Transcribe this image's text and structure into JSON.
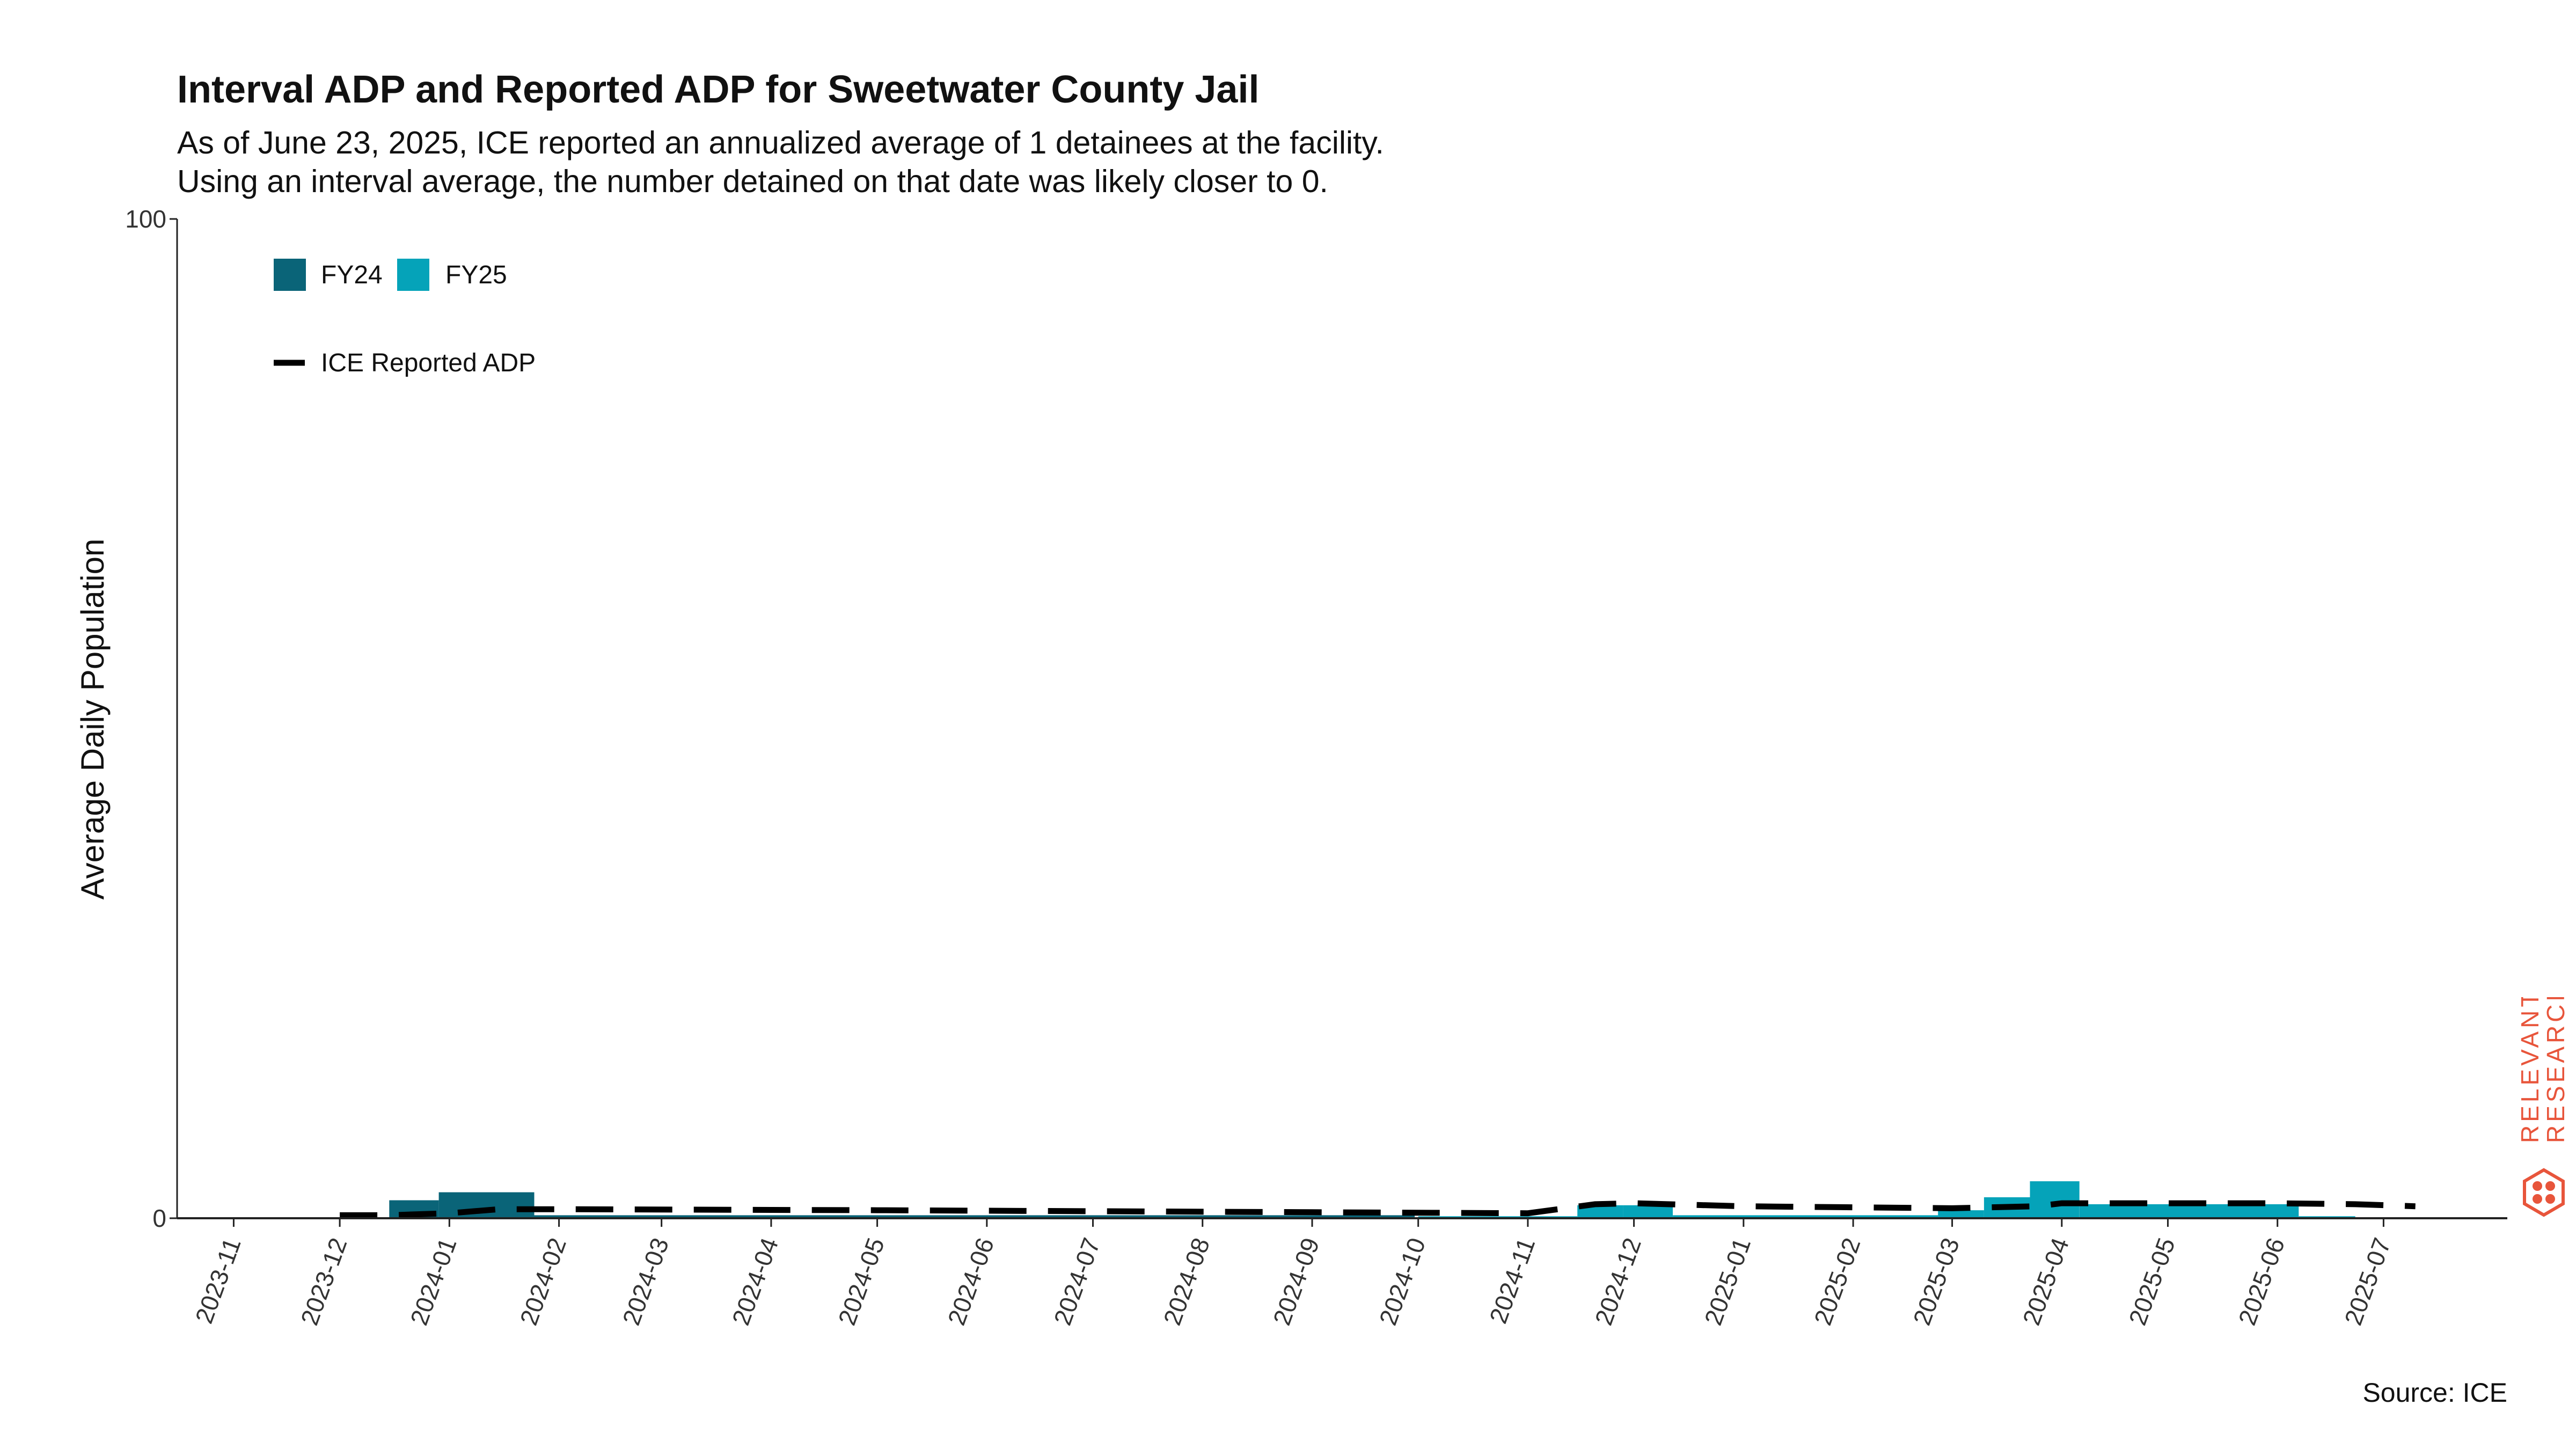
{
  "chart_data": {
    "type": "bar",
    "title": "Interval ADP and Reported ADP for Sweetwater County Jail",
    "subtitle_lines": [
      "As of June 23, 2025, ICE reported an annualized average of 1 detainees at the facility.",
      "Using an interval average, the number detained on that date was likely closer to 0."
    ],
    "ylabel": "Average Daily Population",
    "xlabel": "",
    "ylim": [
      0,
      100
    ],
    "y_ticks": [
      "0",
      "100"
    ],
    "x_ticks": [
      "2023-11",
      "2023-12",
      "2024-01",
      "2024-02",
      "2024-03",
      "2024-04",
      "2024-05",
      "2024-06",
      "2024-07",
      "2024-08",
      "2024-09",
      "2024-10",
      "2024-11",
      "2024-12",
      "2025-01",
      "2025-02",
      "2025-03",
      "2025-04",
      "2025-05",
      "2025-06",
      "2025-07"
    ],
    "x_range": [
      "2023-10-16",
      "2025-08-05"
    ],
    "grid": false,
    "legend": {
      "placement": "top-left",
      "bar_entries": [
        {
          "name": "FY24",
          "color": "#0a6478"
        },
        {
          "name": "FY25",
          "color": "#05a3b9"
        }
      ],
      "line_entry": "ICE Reported ADP"
    },
    "bar_series": [
      {
        "name": "FY24",
        "color": "#0a6478",
        "bars": [
          {
            "start": "2023-12-15",
            "end": "2023-12-29",
            "value": 1.8
          },
          {
            "start": "2023-12-29",
            "end": "2024-01-25",
            "value": 2.6
          },
          {
            "start": "2024-01-25",
            "end": "2024-09-30",
            "value": 0.3
          }
        ]
      },
      {
        "name": "FY25",
        "color": "#05a3b9",
        "bars": [
          {
            "start": "2024-10-01",
            "end": "2024-11-15",
            "value": 0.2
          },
          {
            "start": "2024-11-15",
            "end": "2024-11-28",
            "value": 1.3
          },
          {
            "start": "2024-11-28",
            "end": "2024-12-12",
            "value": 1.3
          },
          {
            "start": "2024-12-12",
            "end": "2025-02-25",
            "value": 0.3
          },
          {
            "start": "2025-02-25",
            "end": "2025-03-10",
            "value": 0.8
          },
          {
            "start": "2025-03-10",
            "end": "2025-03-23",
            "value": 2.1
          },
          {
            "start": "2025-03-23",
            "end": "2025-04-06",
            "value": 3.7
          },
          {
            "start": "2025-04-06",
            "end": "2025-06-07",
            "value": 1.4
          },
          {
            "start": "2025-06-07",
            "end": "2025-06-23",
            "value": 0.2
          }
        ]
      }
    ],
    "reported_adp_line": {
      "name": "ICE Reported ADP",
      "color": "#000000",
      "points": [
        {
          "x": "2023-12-01",
          "y": 0.3
        },
        {
          "x": "2023-12-15",
          "y": 0.3
        },
        {
          "x": "2024-01-01",
          "y": 0.5
        },
        {
          "x": "2024-01-15",
          "y": 0.9
        },
        {
          "x": "2024-02-01",
          "y": 0.9
        },
        {
          "x": "2024-05-01",
          "y": 0.8
        },
        {
          "x": "2024-09-01",
          "y": 0.6
        },
        {
          "x": "2024-11-01",
          "y": 0.5
        },
        {
          "x": "2024-11-20",
          "y": 1.4
        },
        {
          "x": "2024-12-01",
          "y": 1.5
        },
        {
          "x": "2025-01-01",
          "y": 1.2
        },
        {
          "x": "2025-03-01",
          "y": 1.0
        },
        {
          "x": "2025-03-25",
          "y": 1.2
        },
        {
          "x": "2025-04-01",
          "y": 1.5
        },
        {
          "x": "2025-06-01",
          "y": 1.5
        },
        {
          "x": "2025-06-23",
          "y": 1.4
        },
        {
          "x": "2025-07-10",
          "y": 1.2
        }
      ]
    },
    "source": "Source: ICE"
  },
  "logo": {
    "line1": "RELEVANT",
    "line2": "RESEARCH",
    "color": "#e8553b"
  }
}
